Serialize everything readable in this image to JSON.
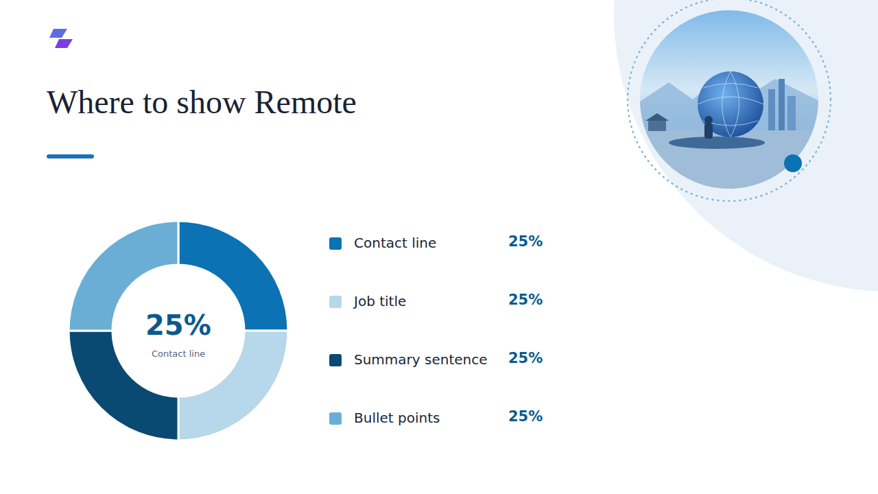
{
  "chart_data": {
    "type": "donut",
    "title": "Where to show Remote",
    "categories": [
      "Contact line",
      "Job title",
      "Summary sentence",
      "Bullet points"
    ],
    "values": [
      25,
      25,
      25,
      25
    ],
    "value_labels": [
      "25%",
      "25%",
      "25%",
      "25%"
    ],
    "colors": [
      "#0b72b4",
      "#b7d7ea",
      "#0a4a72",
      "#6aaed6"
    ],
    "legend": "right",
    "data_labels": false,
    "annotations": [
      "25%",
      "Contact line"
    ]
  }
}
